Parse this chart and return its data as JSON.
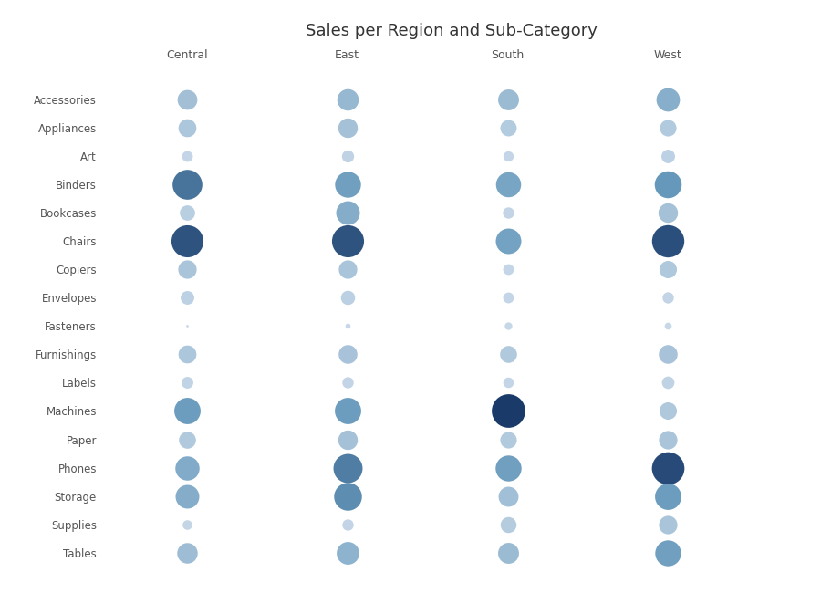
{
  "title": "Sales per Region and Sub-Category",
  "regions": [
    "Central",
    "East",
    "South",
    "West"
  ],
  "subcategories": [
    "Accessories",
    "Appliances",
    "Art",
    "Binders",
    "Bookcases",
    "Chairs",
    "Copiers",
    "Envelopes",
    "Fasteners",
    "Furnishings",
    "Labels",
    "Machines",
    "Paper",
    "Phones",
    "Storage",
    "Supplies",
    "Tables"
  ],
  "sales": {
    "Central": {
      "Accessories": 47000,
      "Appliances": 35000,
      "Art": 9000,
      "Binders": 160000,
      "Bookcases": 22000,
      "Chairs": 200000,
      "Copiers": 38000,
      "Envelopes": 16000,
      "Fasteners": 2500,
      "Furnishings": 35000,
      "Labels": 11000,
      "Machines": 110000,
      "Paper": 30000,
      "Phones": 85000,
      "Storage": 80000,
      "Supplies": 7000,
      "Tables": 52000
    },
    "East": {
      "Accessories": 60000,
      "Appliances": 45000,
      "Art": 12000,
      "Binders": 105000,
      "Bookcases": 80000,
      "Chairs": 200000,
      "Copiers": 38000,
      "Envelopes": 18000,
      "Fasteners": 3000,
      "Furnishings": 40000,
      "Labels": 10000,
      "Machines": 110000,
      "Paper": 45000,
      "Phones": 150000,
      "Storage": 130000,
      "Supplies": 10000,
      "Tables": 70000
    },
    "South": {
      "Accessories": 55000,
      "Appliances": 27000,
      "Art": 8000,
      "Binders": 95000,
      "Bookcases": 10000,
      "Chairs": 100000,
      "Copiers": 9000,
      "Envelopes": 9000,
      "Fasteners": 4500,
      "Furnishings": 30000,
      "Labels": 8500,
      "Machines": 230000,
      "Paper": 28000,
      "Phones": 105000,
      "Storage": 48000,
      "Supplies": 25000,
      "Tables": 55000
    },
    "West": {
      "Accessories": 78000,
      "Appliances": 28000,
      "Art": 16000,
      "Binders": 118000,
      "Bookcases": 45000,
      "Chairs": 205000,
      "Copiers": 32000,
      "Envelopes": 10000,
      "Fasteners": 4000,
      "Furnishings": 40000,
      "Labels": 13000,
      "Machines": 32000,
      "Paper": 38000,
      "Phones": 210000,
      "Storage": 110000,
      "Supplies": 38000,
      "Tables": 105000
    }
  },
  "background_color": "#ffffff",
  "title_fontsize": 13,
  "label_fontsize": 8.5,
  "axis_label_fontsize": 9,
  "color_low": "#c8d8e8",
  "color_mid": "#6699bb",
  "color_high": "#1a3a6a",
  "min_bubble_size": 4,
  "max_bubble_size": 700
}
